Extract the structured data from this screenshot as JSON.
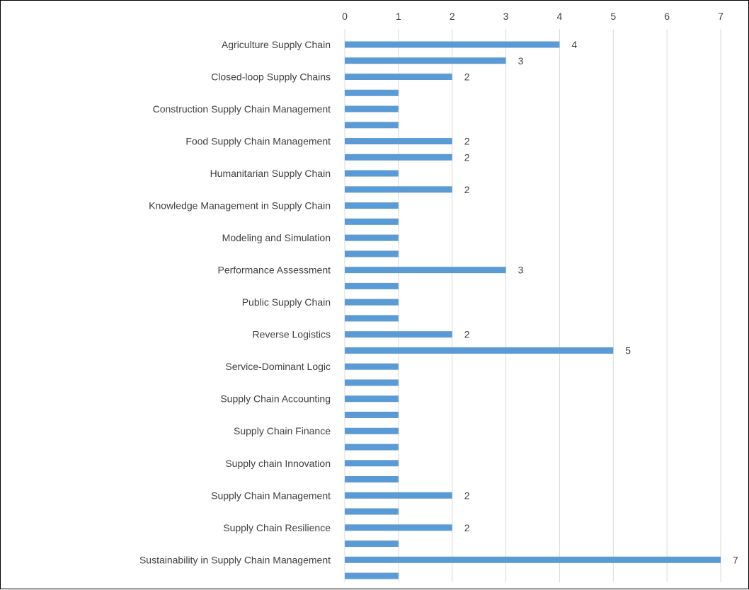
{
  "chart_data": {
    "type": "bar",
    "orientation": "horizontal",
    "title": "",
    "xlabel": "",
    "ylabel": "",
    "xlim": [
      0,
      7
    ],
    "x_ticks": [
      0,
      1,
      2,
      3,
      4,
      5,
      6,
      7
    ],
    "x_axis_position": "top",
    "grid": true,
    "legend": "none",
    "bar_color": "#5B9BD5",
    "categories": [
      "Agriculture Supply Chain",
      "",
      "Closed-loop Supply Chains",
      "",
      "Construction Supply Chain Management",
      "",
      "Food Supply Chain Management",
      "",
      "Humanitarian Supply Chain",
      "",
      "Knowledge Management in Supply Chain",
      "",
      "Modeling and Simulation",
      "",
      "Performance Assessment",
      "",
      "Public Supply Chain",
      "",
      "Reverse Logistics",
      "",
      "Service-Dominant Logic",
      "",
      "Supply Chain Accounting",
      "",
      "Supply Chain Finance",
      "",
      "Supply chain Innovation",
      "",
      "Supply Chain Management",
      "",
      "Supply Chain Resilience",
      "",
      "Sustainability in Supply Chain Management",
      ""
    ],
    "values": [
      4,
      3,
      2,
      1,
      1,
      1,
      2,
      2,
      1,
      2,
      1,
      1,
      1,
      1,
      3,
      1,
      1,
      1,
      2,
      5,
      1,
      1,
      1,
      1,
      1,
      1,
      1,
      1,
      2,
      1,
      2,
      1,
      7,
      1
    ],
    "data_labels": [
      "4",
      "3",
      "2",
      "",
      "",
      "",
      "2",
      "2",
      "",
      "2",
      "",
      "",
      "",
      "",
      "3",
      "",
      "",
      "",
      "2",
      "5",
      "",
      "",
      "",
      "",
      "",
      "",
      "",
      "",
      "2",
      "",
      "2",
      "",
      "7",
      ""
    ]
  }
}
